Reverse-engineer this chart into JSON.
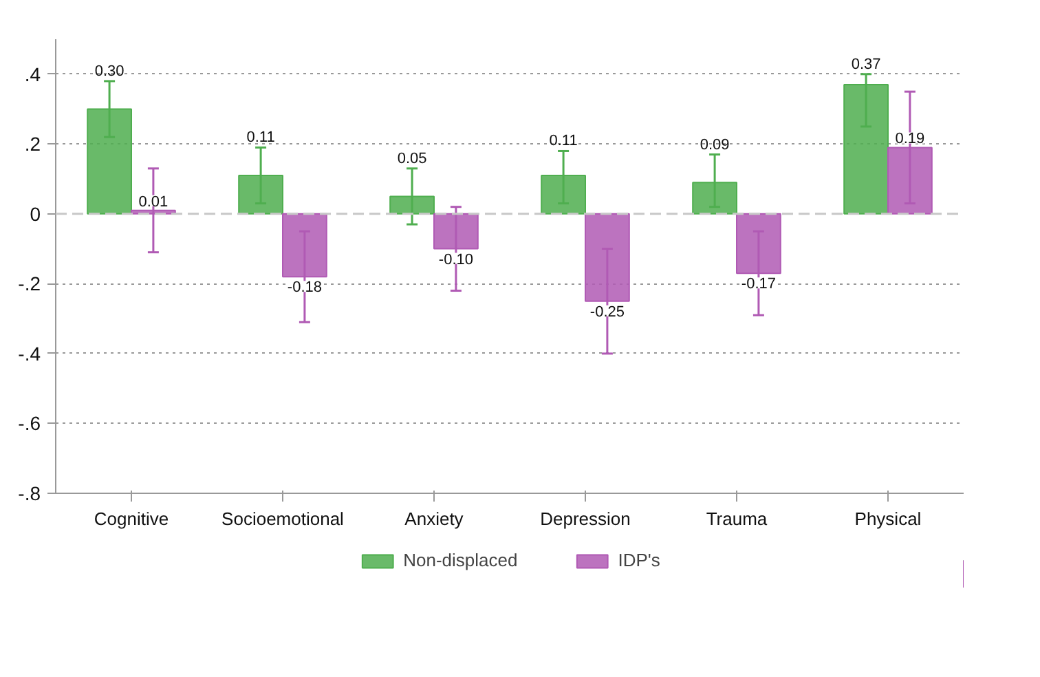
{
  "chart_data": {
    "type": "bar",
    "categories": [
      "Cognitive",
      "Socioemotional",
      "Anxiety",
      "Depression",
      "Trauma",
      "Physical"
    ],
    "series": [
      {
        "name": "Non-displaced",
        "color": "#4fae4f",
        "values": [
          0.3,
          0.11,
          0.05,
          0.11,
          0.09,
          0.37
        ],
        "errors": [
          [
            0.22,
            0.38
          ],
          [
            0.03,
            0.19
          ],
          [
            -0.03,
            0.13
          ],
          [
            0.03,
            0.18
          ],
          [
            0.02,
            0.17
          ],
          [
            0.25,
            0.4
          ]
        ],
        "value_labels": [
          "0.30",
          "0.11",
          "0.05",
          "0.11",
          "0.09",
          "0.37"
        ]
      },
      {
        "name": "IDP's",
        "color": "#b05ab4",
        "values": [
          0.01,
          -0.18,
          -0.1,
          -0.25,
          -0.17,
          0.19
        ],
        "errors": [
          [
            -0.11,
            0.13
          ],
          [
            -0.31,
            -0.05
          ],
          [
            -0.22,
            0.02
          ],
          [
            -0.4,
            -0.1
          ],
          [
            -0.29,
            -0.05
          ],
          [
            0.03,
            0.35
          ]
        ],
        "value_labels": [
          "0.01",
          "-0.18",
          "-0.10",
          "-0.25",
          "-0.17",
          "0.19"
        ]
      }
    ],
    "ylim": [
      -0.8,
      0.5
    ],
    "yticks": [
      {
        "value": -0.8,
        "label": "-.8"
      },
      {
        "value": -0.6,
        "label": "-.6"
      },
      {
        "value": -0.4,
        "label": "-.4"
      },
      {
        "value": -0.2,
        "label": "-.2"
      },
      0,
      {
        "value": 0.2,
        "label": ".2"
      },
      {
        "value": 0.4,
        "label": ".4"
      }
    ],
    "ref_lines": [
      {
        "axis": "y",
        "value": 0,
        "color": "#c8c8c8",
        "line_style": "dashed"
      }
    ],
    "grid": "y",
    "legend": "bottom"
  }
}
